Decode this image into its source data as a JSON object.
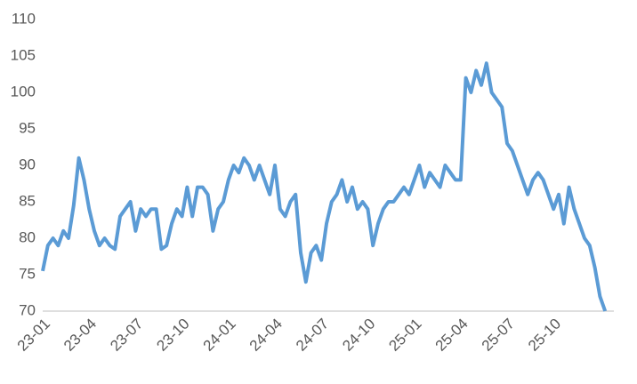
{
  "chart_data": {
    "type": "line",
    "categories": [
      "23-01",
      null,
      null,
      null,
      null,
      null,
      null,
      null,
      null,
      "23-04",
      null,
      null,
      null,
      null,
      null,
      null,
      null,
      null,
      "23-07",
      null,
      null,
      null,
      null,
      null,
      null,
      null,
      null,
      "23-10",
      null,
      null,
      null,
      null,
      null,
      null,
      null,
      null,
      "24-01",
      null,
      null,
      null,
      null,
      null,
      null,
      null,
      null,
      "24-04",
      null,
      null,
      null,
      null,
      null,
      null,
      null,
      null,
      "24-07",
      null,
      null,
      null,
      null,
      null,
      null,
      null,
      null,
      "24-10",
      null,
      null,
      null,
      null,
      null,
      null,
      null,
      null,
      "25-01",
      null,
      null,
      null,
      null,
      null,
      null,
      null,
      null,
      "25-04",
      null,
      null,
      null,
      null,
      null,
      null,
      null,
      null,
      "25-07",
      null,
      null,
      null,
      null,
      null,
      null,
      null,
      null,
      "25-10",
      null,
      null,
      null,
      null,
      null,
      null,
      null,
      null,
      null,
      null
    ],
    "values": [
      75.5,
      79,
      80,
      79,
      81,
      80,
      84.5,
      91,
      88,
      84,
      81,
      79,
      80,
      79,
      78.5,
      83,
      84,
      85,
      81,
      84,
      83,
      84,
      84,
      78.5,
      79,
      82,
      84,
      83,
      87,
      83,
      87,
      87,
      86,
      81,
      84,
      85,
      88,
      90,
      89,
      91,
      90,
      88,
      90,
      88,
      86,
      90,
      84,
      83,
      85,
      86,
      78,
      74,
      78,
      79,
      77,
      82,
      85,
      86,
      88,
      85,
      87,
      84,
      85,
      84,
      79,
      82,
      84,
      85,
      85,
      86,
      87,
      86,
      88,
      90,
      87,
      89,
      88,
      87,
      90,
      89,
      88,
      88,
      102,
      100,
      103,
      101,
      104,
      100,
      99,
      98,
      93,
      92,
      90,
      88,
      86,
      88,
      89,
      88,
      86,
      84,
      86,
      82,
      87,
      84,
      82,
      80,
      79,
      76,
      72,
      70
    ],
    "color": "#5b9bd5",
    "ylim": [
      70,
      110
    ],
    "yticks": [
      70,
      75,
      80,
      85,
      90,
      95,
      100,
      105,
      110
    ]
  }
}
